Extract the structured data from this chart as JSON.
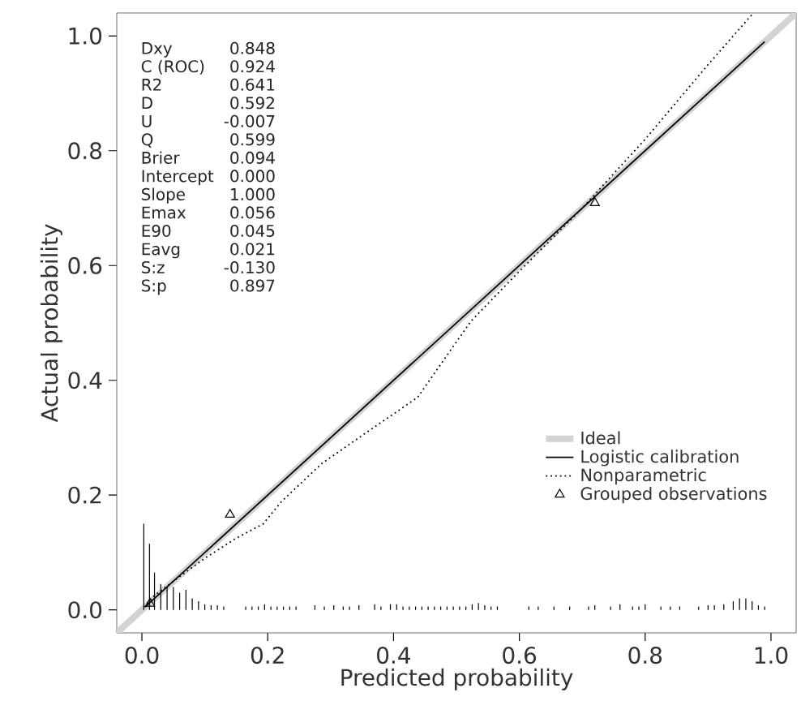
{
  "chart_data": {
    "type": "line",
    "xlabel": "Predicted probability",
    "ylabel": "Actual probability",
    "xlim": [
      -0.04,
      1.04
    ],
    "ylim": [
      -0.04,
      1.04
    ],
    "xticks": [
      {
        "value": 0,
        "label": "0.0"
      },
      {
        "value": 0.2,
        "label": "0.2"
      },
      {
        "value": 0.4,
        "label": "0.4"
      },
      {
        "value": 0.6,
        "label": "0.6"
      },
      {
        "value": 0.8,
        "label": "0.8"
      },
      {
        "value": 1,
        "label": "1.0"
      }
    ],
    "yticks": [
      {
        "value": 0,
        "label": "0.0"
      },
      {
        "value": 0.2,
        "label": "0.2"
      },
      {
        "value": 0.4,
        "label": "0.4"
      },
      {
        "value": 0.6,
        "label": "0.6"
      },
      {
        "value": 0.8,
        "label": "0.8"
      },
      {
        "value": 1,
        "label": "1.0"
      }
    ],
    "legend": "bottom right",
    "grid": false,
    "annotations": [
      "Dxy",
      "0.848",
      "C (ROC)",
      "0.924",
      "R2",
      "0.641",
      "D",
      "0.592",
      "U",
      "-0.007",
      "Q",
      "0.599",
      "Brier",
      "0.094",
      "Intercept",
      "0.000",
      "Slope",
      "1.000",
      "Emax",
      "0.056",
      "E90",
      "0.045",
      "Eavg",
      "0.021",
      "S:z",
      "-0.130",
      "S:p",
      "0.897"
    ],
    "series": [
      {
        "name": "Ideal",
        "color": "#d3d3d3",
        "line_style": "solid",
        "marker": "none",
        "x": [
          -0.04,
          1.04
        ],
        "values": [
          -0.04,
          1.04
        ]
      },
      {
        "name": "Logistic calibration",
        "color": "#000000",
        "line_style": "solid",
        "marker": "none",
        "x": [
          0.005,
          0.99
        ],
        "values": [
          0.005,
          0.99
        ]
      },
      {
        "name": "Nonparametric",
        "color": "#000000",
        "line_style": "dotted",
        "marker": "none",
        "x": [
          0.003,
          0.02,
          0.05,
          0.1,
          0.15,
          0.193,
          0.222,
          0.286,
          0.362,
          0.438,
          0.523,
          0.6,
          0.7,
          0.8,
          0.9,
          0.972
        ],
        "values": [
          0.005,
          0.025,
          0.05,
          0.09,
          0.125,
          0.15,
          0.189,
          0.255,
          0.313,
          0.37,
          0.503,
          0.59,
          0.7,
          0.82,
          0.95,
          1.04
        ]
      },
      {
        "name": "Grouped observations",
        "type": "scatter",
        "color": "#000000",
        "marker": "triangle",
        "x": [
          0.013,
          0.14,
          0.72
        ],
        "values": [
          0.011,
          0.166,
          0.709
        ]
      },
      {
        "type": "bar",
        "color": "#000000",
        "x": [
          0.003,
          0.012,
          0.02,
          0.03,
          0.04,
          0.05,
          0.06,
          0.07,
          0.08,
          0.09,
          0.1,
          0.11,
          0.12,
          0.13,
          0.165,
          0.175,
          0.185,
          0.195,
          0.205,
          0.215,
          0.225,
          0.235,
          0.245,
          0.275,
          0.29,
          0.305,
          0.32,
          0.33,
          0.345,
          0.37,
          0.38,
          0.395,
          0.405,
          0.415,
          0.425,
          0.435,
          0.445,
          0.455,
          0.465,
          0.475,
          0.485,
          0.495,
          0.505,
          0.515,
          0.525,
          0.535,
          0.545,
          0.555,
          0.565,
          0.615,
          0.63,
          0.655,
          0.68,
          0.71,
          0.72,
          0.745,
          0.76,
          0.78,
          0.79,
          0.8,
          0.825,
          0.84,
          0.855,
          0.885,
          0.9,
          0.91,
          0.925,
          0.94,
          0.95,
          0.96,
          0.97,
          0.98,
          0.99
        ],
        "values": [
          0.15,
          0.115,
          0.065,
          0.045,
          0.04,
          0.04,
          0.03,
          0.035,
          0.02,
          0.015,
          0.01,
          0.008,
          0.008,
          0.006,
          0.006,
          0.006,
          0.006,
          0.01,
          0.006,
          0.006,
          0.006,
          0.006,
          0.006,
          0.008,
          0.006,
          0.008,
          0.006,
          0.006,
          0.008,
          0.01,
          0.006,
          0.01,
          0.01,
          0.006,
          0.006,
          0.006,
          0.006,
          0.006,
          0.006,
          0.006,
          0.006,
          0.006,
          0.006,
          0.006,
          0.01,
          0.012,
          0.008,
          0.006,
          0.006,
          0.006,
          0.006,
          0.006,
          0.006,
          0.006,
          0.008,
          0.006,
          0.01,
          0.006,
          0.006,
          0.01,
          0.006,
          0.006,
          0.006,
          0.006,
          0.008,
          0.008,
          0.01,
          0.015,
          0.02,
          0.02,
          0.015,
          0.008,
          0.006
        ]
      }
    ]
  }
}
